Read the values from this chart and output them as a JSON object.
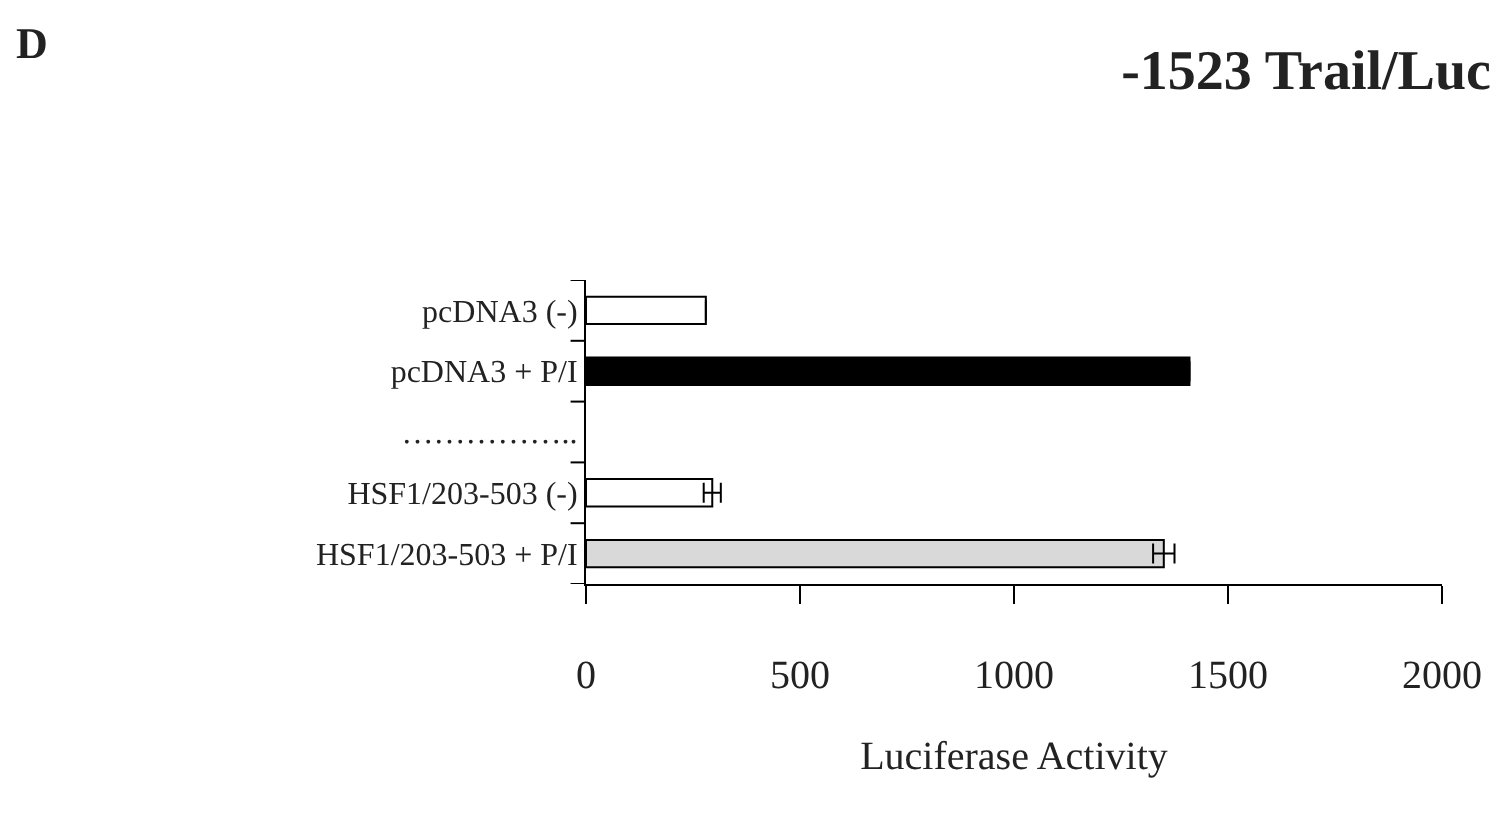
{
  "chart_data": {
    "type": "bar",
    "orientation": "horizontal",
    "title": "-1523 Trail/Luc",
    "xlabel": "Luciferase Activity",
    "annotations": [
      "D"
    ],
    "categories": [
      "pcDNA3 (-)",
      "pcDNA3 + P/I",
      "……………..",
      "HSF1/203-503 (-)",
      "HSF1/203-503 + P/I"
    ],
    "values": [
      280,
      1410,
      null,
      295,
      1350
    ],
    "errors": [
      null,
      null,
      null,
      20,
      25
    ],
    "colors": [
      "#ffffff",
      "#000000",
      "#ffffff",
      "#ffffff",
      "#d9d9d9"
    ],
    "xlim": [
      0,
      2000
    ],
    "xticks": [
      0,
      500,
      1000,
      1500,
      2000
    ]
  }
}
